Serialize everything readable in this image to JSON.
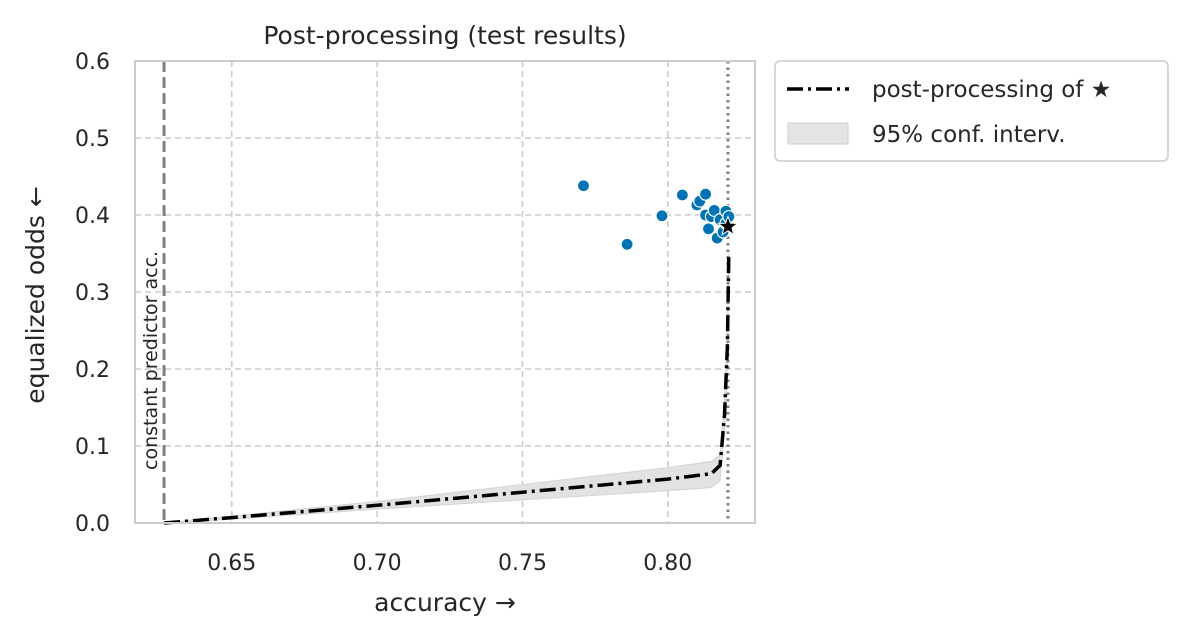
{
  "chart_data": {
    "type": "scatter",
    "title": "Post-processing (test results)",
    "xlabel": "accuracy →",
    "ylabel": "equalized odds  ←",
    "xlim": [
      0.6167,
      0.83
    ],
    "ylim": [
      0.0,
      0.6
    ],
    "xticks": [
      "0.65",
      "0.70",
      "0.75",
      "0.80"
    ],
    "xtick_values": [
      0.65,
      0.7,
      0.75,
      0.8
    ],
    "yticks": [
      "0.0",
      "0.1",
      "0.2",
      "0.3",
      "0.4",
      "0.5",
      "0.6"
    ],
    "ytick_values": [
      0.0,
      0.1,
      0.2,
      0.3,
      0.4,
      0.5,
      0.6
    ],
    "grid": true,
    "legend_position": "outside-top-right",
    "colors": {
      "points": "#0173b2",
      "line": "#000000",
      "band": "#d3d3d3",
      "ref_line": "#808080",
      "grid": "#cccccc",
      "spine": "#cccccc"
    },
    "reference_lines": {
      "constant_predictor": {
        "x": 0.6267,
        "label": "constant predictor acc."
      },
      "star_accuracy": {
        "x": 0.8207
      }
    },
    "scatter_points": {
      "x": [
        0.771,
        0.786,
        0.798,
        0.805,
        0.81,
        0.811,
        0.813,
        0.813,
        0.814,
        0.815,
        0.816,
        0.817,
        0.818,
        0.819,
        0.82,
        0.82,
        0.821
      ],
      "y": [
        0.438,
        0.362,
        0.399,
        0.426,
        0.413,
        0.418,
        0.427,
        0.4,
        0.382,
        0.398,
        0.406,
        0.37,
        0.394,
        0.378,
        0.405,
        0.389,
        0.398
      ]
    },
    "star_point": {
      "x": 0.8207,
      "y": 0.385
    },
    "series": [
      {
        "name": "post-processing of ★",
        "x": [
          0.6267,
          0.65,
          0.7,
          0.75,
          0.8,
          0.815,
          0.818,
          0.8195,
          0.8205,
          0.821
        ],
        "y": [
          0.0,
          0.007,
          0.023,
          0.04,
          0.057,
          0.064,
          0.075,
          0.14,
          0.23,
          0.35
        ]
      }
    ],
    "band": {
      "name": "95% conf. interv.",
      "x": [
        0.6267,
        0.65,
        0.7,
        0.75,
        0.8,
        0.815,
        0.818,
        0.8195,
        0.8205,
        0.821
      ],
      "upper": [
        0.0,
        0.009,
        0.028,
        0.05,
        0.072,
        0.08,
        0.088,
        0.16,
        0.25,
        0.35
      ],
      "lower": [
        0.0,
        0.005,
        0.018,
        0.03,
        0.042,
        0.046,
        0.055,
        0.12,
        0.21,
        0.35
      ]
    },
    "legend": [
      {
        "label": "post-processing of ★",
        "kind": "line"
      },
      {
        "label": "95% conf. interv.",
        "kind": "band"
      }
    ]
  }
}
